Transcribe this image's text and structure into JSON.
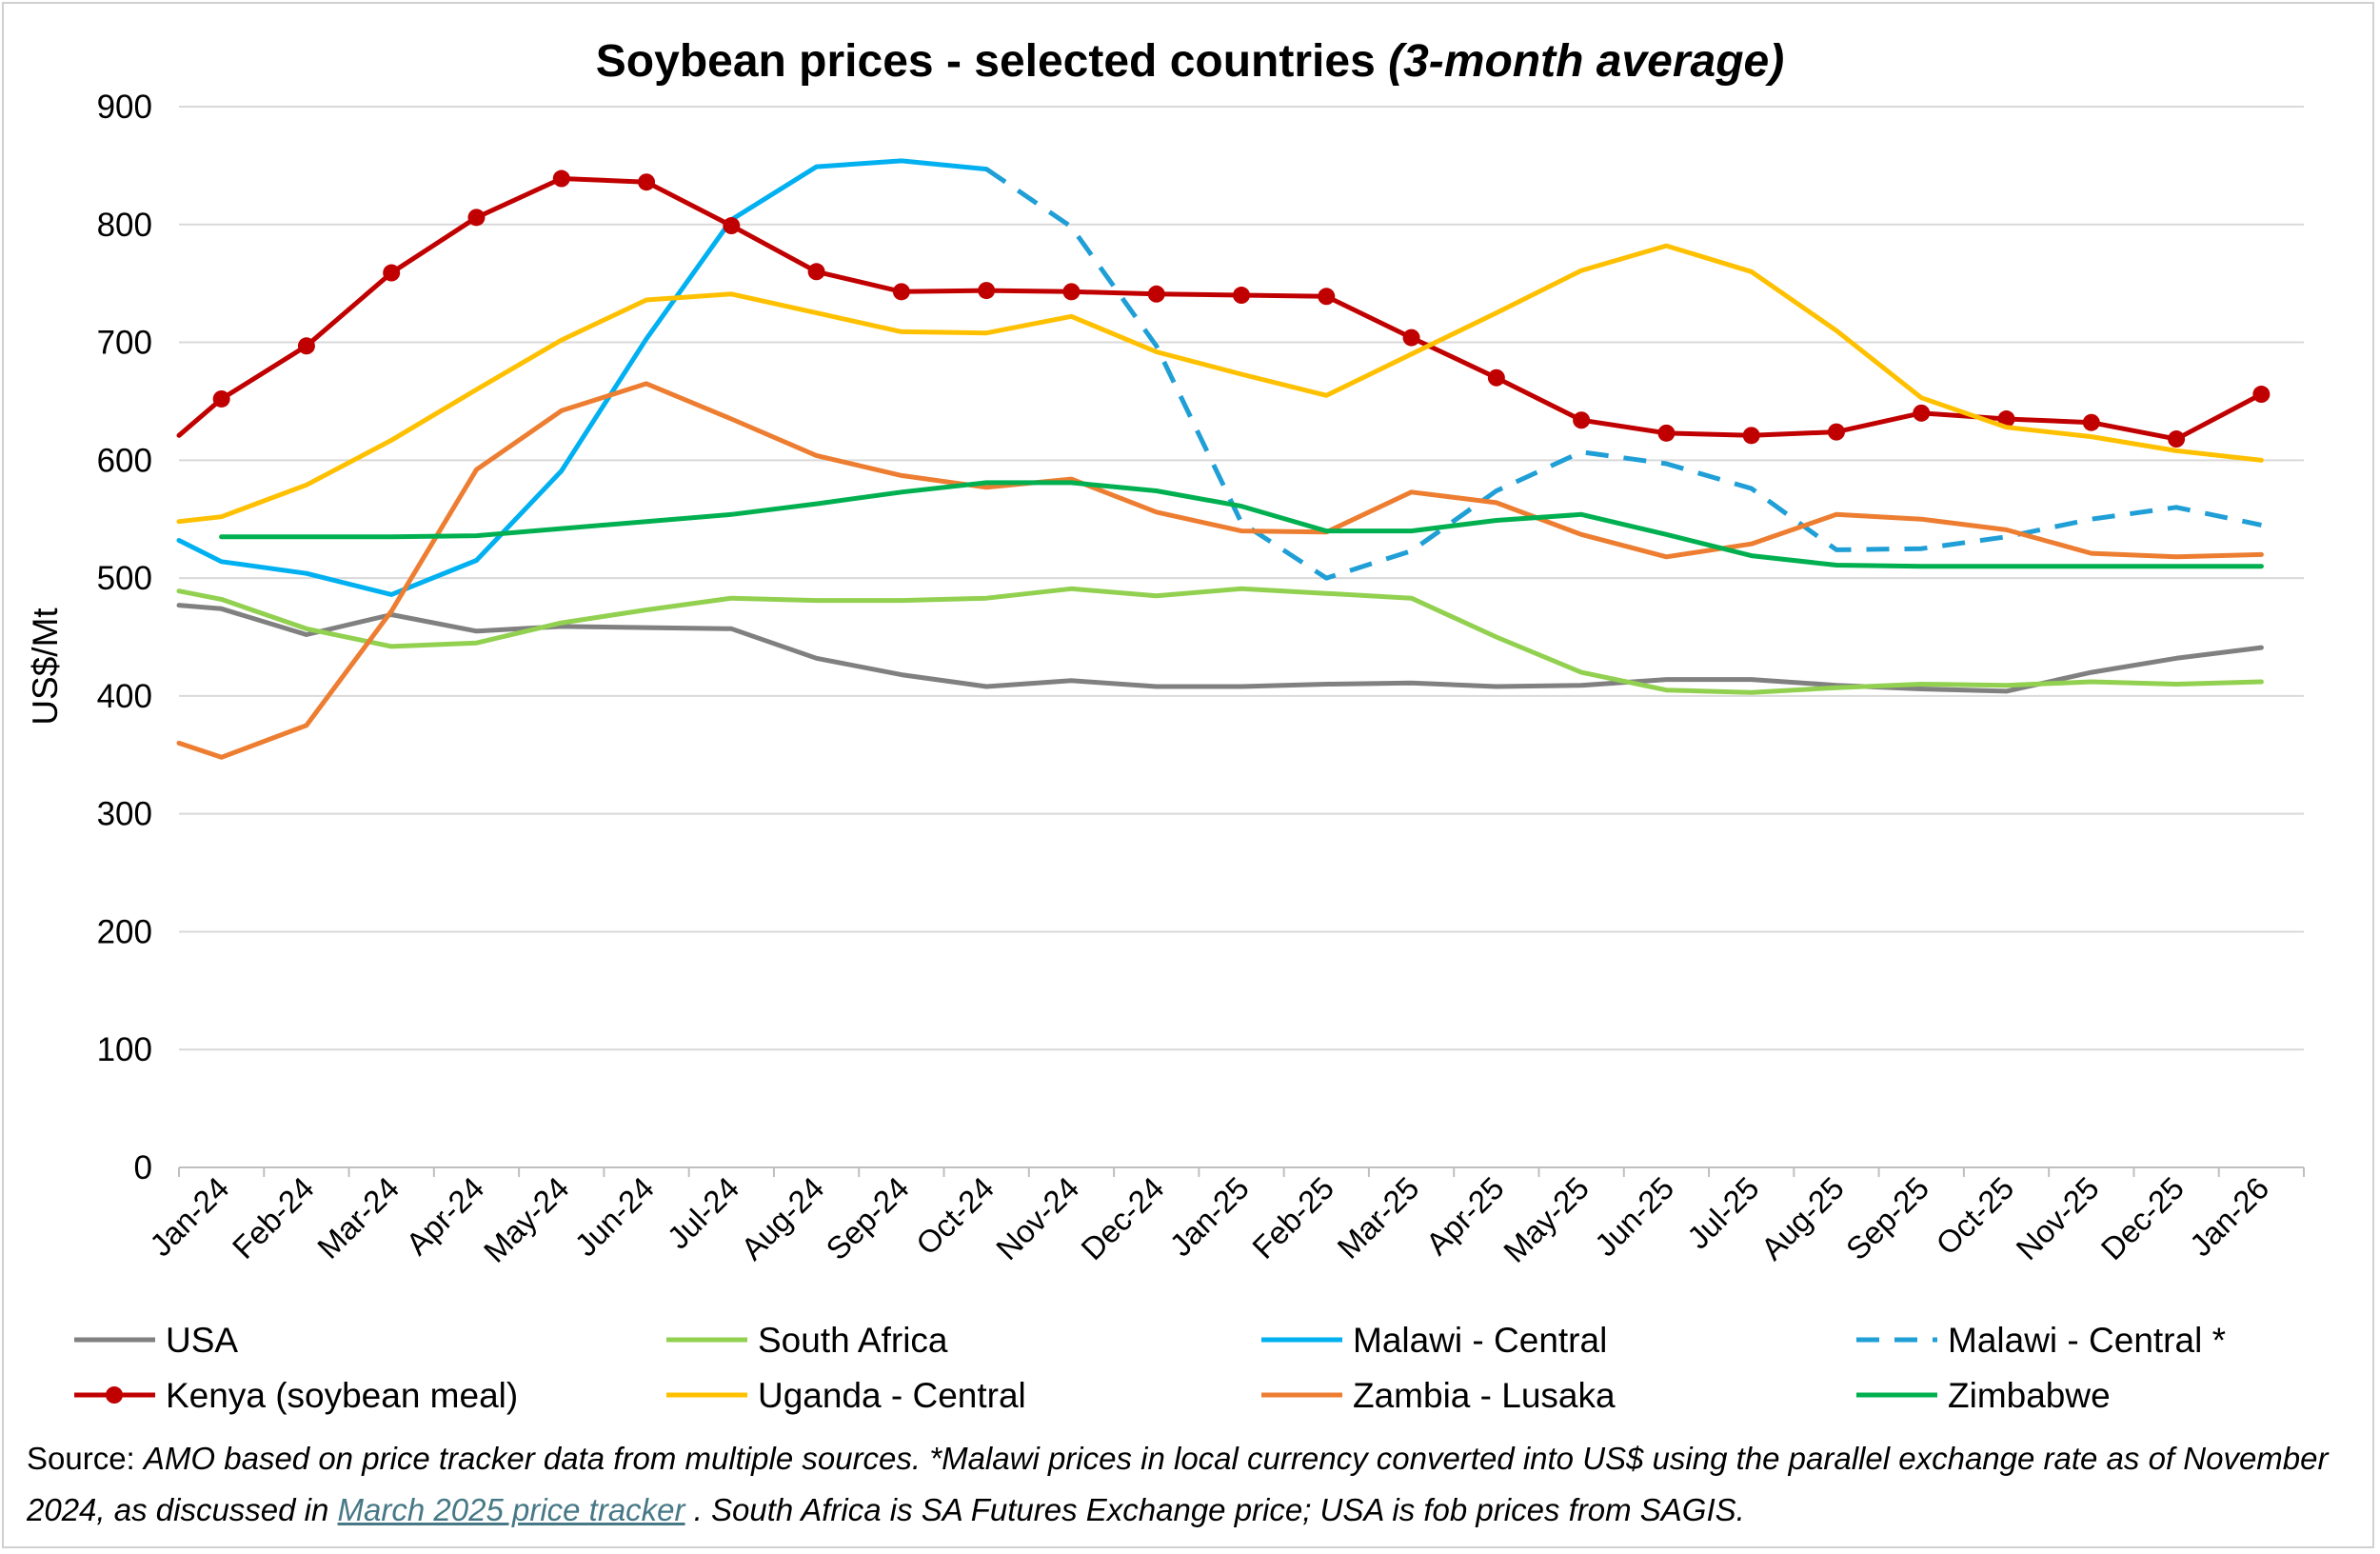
{
  "chart_data": {
    "type": "line",
    "title": "Soybean prices - selected countries",
    "title_suffix": "(3-month average)",
    "xlabel": "",
    "ylabel": "US$/Mt",
    "ylim": [
      0,
      900
    ],
    "yticks": [
      0,
      100,
      200,
      300,
      400,
      500,
      600,
      700,
      800,
      900
    ],
    "grid": true,
    "legend_position": "bottom",
    "categories": [
      "Jan-24",
      "Feb-24",
      "Mar-24",
      "Apr-24",
      "May-24",
      "Jun-24",
      "Jul-24",
      "Aug-24",
      "Sep-24",
      "Oct-24",
      "Nov-24",
      "Dec-24",
      "Jan-25",
      "Feb-25",
      "Mar-25",
      "Apr-25",
      "May-25",
      "Jun-25",
      "Jul-25",
      "Aug-25",
      "Sep-25",
      "Oct-25",
      "Nov-25",
      "Dec-25",
      "Jan-26"
    ],
    "series": [
      {
        "name": "USA",
        "color": "#808080",
        "dash": false,
        "markers": false,
        "points": [
          [
            0,
            477
          ],
          [
            0.5,
            474
          ],
          [
            1.5,
            452
          ],
          [
            2.5,
            469
          ],
          [
            3.5,
            455
          ],
          [
            4.5,
            459
          ],
          [
            5.5,
            458
          ],
          [
            6.5,
            457
          ],
          [
            7.5,
            432
          ],
          [
            8.5,
            418
          ],
          [
            9.5,
            408
          ],
          [
            10.5,
            413
          ],
          [
            11.5,
            408
          ],
          [
            12.5,
            408
          ],
          [
            13.5,
            410
          ],
          [
            14.5,
            411
          ],
          [
            15.5,
            408
          ],
          [
            16.5,
            409
          ],
          [
            17.5,
            414
          ],
          [
            18.5,
            414
          ],
          [
            19.5,
            409
          ],
          [
            20.5,
            406
          ],
          [
            21.5,
            404
          ],
          [
            22.5,
            420
          ],
          [
            23.5,
            432
          ],
          [
            24.5,
            441
          ]
        ]
      },
      {
        "name": "South Africa",
        "color": "#92d050",
        "dash": false,
        "markers": false,
        "points": [
          [
            0,
            489
          ],
          [
            0.5,
            482
          ],
          [
            1.5,
            457
          ],
          [
            2.5,
            442
          ],
          [
            3.5,
            445
          ],
          [
            4.5,
            462
          ],
          [
            5.5,
            473
          ],
          [
            6.5,
            483
          ],
          [
            7.5,
            481
          ],
          [
            8.5,
            481
          ],
          [
            9.5,
            483
          ],
          [
            10.5,
            491
          ],
          [
            11.5,
            485
          ],
          [
            12.5,
            491
          ],
          [
            13.5,
            487
          ],
          [
            14.5,
            483
          ],
          [
            15.5,
            450
          ],
          [
            16.5,
            420
          ],
          [
            17.5,
            405
          ],
          [
            18.5,
            403
          ],
          [
            19.5,
            407
          ],
          [
            20.5,
            410
          ],
          [
            21.5,
            409
          ],
          [
            22.5,
            412
          ],
          [
            23.5,
            410
          ],
          [
            24.5,
            412
          ]
        ]
      },
      {
        "name": "Malawi - Central",
        "color": "#00b0f0",
        "dash": false,
        "markers": false,
        "points": [
          [
            0,
            532
          ],
          [
            0.5,
            514
          ],
          [
            1.5,
            504
          ],
          [
            2.5,
            486
          ],
          [
            3.5,
            515
          ],
          [
            4.5,
            591
          ],
          [
            5.5,
            703
          ],
          [
            6.5,
            804
          ],
          [
            7.5,
            849
          ],
          [
            8.5,
            854
          ],
          [
            9.5,
            847
          ]
        ]
      },
      {
        "name": "Malawi - Central *",
        "color": "#1f9fd6",
        "dash": true,
        "markers": false,
        "points": [
          [
            9.5,
            847
          ],
          [
            10.5,
            798
          ],
          [
            11.5,
            697
          ],
          [
            12.5,
            547
          ],
          [
            13.5,
            500
          ],
          [
            14.5,
            523
          ],
          [
            15.5,
            574
          ],
          [
            16.5,
            607
          ],
          [
            17.5,
            597
          ],
          [
            18.5,
            576
          ],
          [
            19.5,
            524
          ],
          [
            20.5,
            525
          ],
          [
            21.5,
            535
          ],
          [
            22.5,
            550
          ],
          [
            23.5,
            560
          ],
          [
            24.5,
            545
          ]
        ]
      },
      {
        "name": "Kenya (soybean meal)",
        "color": "#c00000",
        "dash": false,
        "markers": true,
        "points": [
          [
            0,
            621
          ],
          [
            0.5,
            652
          ],
          [
            1.5,
            697
          ],
          [
            2.5,
            759
          ],
          [
            3.5,
            806
          ],
          [
            4.5,
            839
          ],
          [
            5.5,
            836
          ],
          [
            6.5,
            799
          ],
          [
            7.5,
            760
          ],
          [
            8.5,
            743
          ],
          [
            9.5,
            744
          ],
          [
            10.5,
            743
          ],
          [
            11.5,
            741
          ],
          [
            12.5,
            740
          ],
          [
            13.5,
            739
          ],
          [
            14.5,
            704
          ],
          [
            15.5,
            670
          ],
          [
            16.5,
            634
          ],
          [
            17.5,
            623
          ],
          [
            18.5,
            621
          ],
          [
            19.5,
            624
          ],
          [
            20.5,
            640
          ],
          [
            21.5,
            635
          ],
          [
            22.5,
            632
          ],
          [
            23.5,
            618
          ],
          [
            24.5,
            656
          ]
        ]
      },
      {
        "name": "Uganda - Central",
        "color": "#ffc000",
        "dash": false,
        "markers": false,
        "points": [
          [
            0,
            548
          ],
          [
            0.5,
            552
          ],
          [
            1.5,
            579
          ],
          [
            2.5,
            617
          ],
          [
            3.5,
            660
          ],
          [
            4.5,
            702
          ],
          [
            5.5,
            736
          ],
          [
            6.5,
            741
          ],
          [
            7.5,
            725
          ],
          [
            8.5,
            709
          ],
          [
            9.5,
            708
          ],
          [
            10.5,
            722
          ],
          [
            11.5,
            692
          ],
          [
            12.5,
            673
          ],
          [
            13.5,
            655
          ],
          [
            14.5,
            690
          ],
          [
            15.5,
            725
          ],
          [
            16.5,
            761
          ],
          [
            17.5,
            782
          ],
          [
            18.5,
            760
          ],
          [
            19.5,
            710
          ],
          [
            20.5,
            653
          ],
          [
            21.5,
            628
          ],
          [
            22.5,
            620
          ],
          [
            23.5,
            608
          ],
          [
            24.5,
            600
          ]
        ]
      },
      {
        "name": "Zambia - Lusaka",
        "color": "#ed7d31",
        "dash": false,
        "markers": false,
        "points": [
          [
            0,
            360
          ],
          [
            0.5,
            348
          ],
          [
            1.5,
            375
          ],
          [
            2.5,
            472
          ],
          [
            3.5,
            592
          ],
          [
            4.5,
            642
          ],
          [
            5.5,
            665
          ],
          [
            6.5,
            635
          ],
          [
            7.5,
            604
          ],
          [
            8.5,
            587
          ],
          [
            9.5,
            577
          ],
          [
            10.5,
            584
          ],
          [
            11.5,
            556
          ],
          [
            12.5,
            540
          ],
          [
            13.5,
            539
          ],
          [
            14.5,
            573
          ],
          [
            15.5,
            564
          ],
          [
            16.5,
            537
          ],
          [
            17.5,
            518
          ],
          [
            18.5,
            529
          ],
          [
            19.5,
            554
          ],
          [
            20.5,
            550
          ],
          [
            21.5,
            541
          ],
          [
            22.5,
            521
          ],
          [
            23.5,
            518
          ],
          [
            24.5,
            520
          ]
        ]
      },
      {
        "name": "Zimbabwe",
        "color": "#00b050",
        "dash": false,
        "markers": false,
        "points": [
          [
            0.5,
            535
          ],
          [
            1.5,
            535
          ],
          [
            2.5,
            535
          ],
          [
            3.5,
            536
          ],
          [
            4.5,
            542
          ],
          [
            5.5,
            548
          ],
          [
            6.5,
            554
          ],
          [
            7.5,
            563
          ],
          [
            8.5,
            573
          ],
          [
            9.5,
            581
          ],
          [
            10.5,
            581
          ],
          [
            11.5,
            574
          ],
          [
            12.5,
            561
          ],
          [
            13.5,
            540
          ],
          [
            14.5,
            540
          ],
          [
            15.5,
            549
          ],
          [
            16.5,
            554
          ],
          [
            17.5,
            537
          ],
          [
            18.5,
            519
          ],
          [
            19.5,
            511
          ],
          [
            20.5,
            510
          ],
          [
            21.5,
            510
          ],
          [
            22.5,
            510
          ],
          [
            23.5,
            510
          ],
          [
            24.5,
            510
          ]
        ]
      }
    ]
  },
  "source": {
    "label": "Source:",
    "text1": "AMO based on price tracker data from multiple sources. *Malawi prices in local currency converted into US$ using the parallel exchange rate as of November 2024, as discussed in",
    "link": "March 2025 price tracker",
    "text2": ". South Africa is SA Futures Exchange price; USA is fob prices from SAGIS."
  }
}
